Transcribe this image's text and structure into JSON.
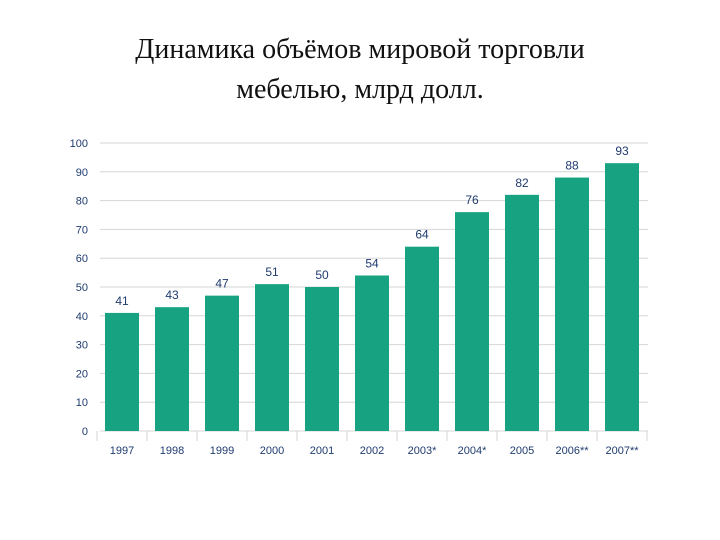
{
  "title": {
    "line1": "Динамика объёмов мировой торговли",
    "line2": "мебелью, млрд долл."
  },
  "chart_data": {
    "type": "bar",
    "categories": [
      "1997",
      "1998",
      "1999",
      "2000",
      "2001",
      "2002",
      "2003*",
      "2004*",
      "2005",
      "2006**",
      "2007**"
    ],
    "values": [
      41,
      43,
      47,
      51,
      50,
      54,
      64,
      76,
      82,
      88,
      93
    ],
    "data_labels": [
      "41",
      "43",
      "47",
      "51",
      "50",
      "54",
      "64",
      "76",
      "82",
      "88",
      "93"
    ],
    "yticks": [
      0,
      10,
      20,
      30,
      40,
      50,
      60,
      70,
      80,
      90,
      100
    ],
    "ylim": [
      0,
      100
    ],
    "grid": "horizontal",
    "bar_color": "#17a382",
    "grid_color": "#d6d6d6",
    "label_color": "#1f3b6e"
  }
}
